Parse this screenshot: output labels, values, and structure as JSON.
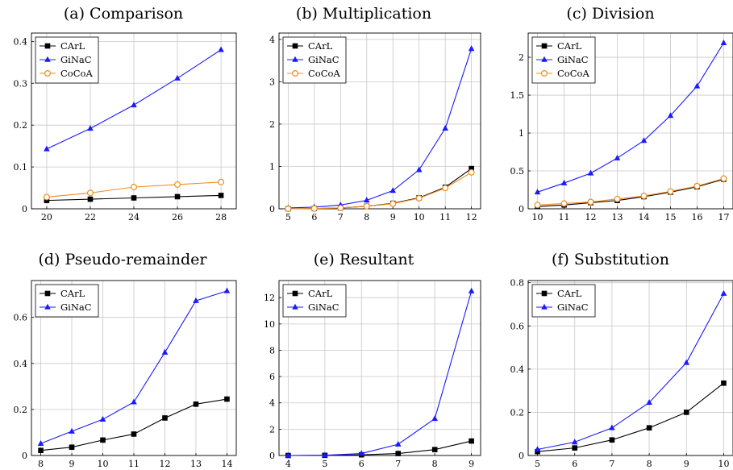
{
  "colors": {
    "carl": "#000000",
    "ginac": "#1a1aff",
    "cocoa": "#f08c1e",
    "grid": "#c8c8c8"
  },
  "chart_data": [
    {
      "id": "a",
      "type": "line",
      "title": "(a) Comparison",
      "x": [
        20,
        22,
        24,
        26,
        28
      ],
      "xticks": [
        20,
        22,
        24,
        26,
        28
      ],
      "xlim": [
        19.3,
        28.7
      ],
      "ylim": [
        0,
        0.42
      ],
      "yticks": [
        0,
        0.1,
        0.2,
        0.3,
        0.4
      ],
      "ytick_labels": [
        "0",
        "0.1",
        "0.2",
        "0.3",
        "0.4"
      ],
      "grid": true,
      "legend": "top-left",
      "series": [
        {
          "name": "CArL",
          "marker": "square",
          "color": "#000000",
          "values": [
            0.02,
            0.023,
            0.026,
            0.029,
            0.032
          ]
        },
        {
          "name": "GiNaC",
          "marker": "triangle",
          "color": "#1a1aff",
          "values": [
            0.143,
            0.192,
            0.248,
            0.312,
            0.38
          ]
        },
        {
          "name": "CoCoA",
          "marker": "circle",
          "color": "#f08c1e",
          "values": [
            0.028,
            0.038,
            0.052,
            0.058,
            0.064
          ]
        }
      ]
    },
    {
      "id": "b",
      "type": "line",
      "title": "(b) Multiplication",
      "x": [
        5,
        6,
        7,
        8,
        9,
        10,
        11,
        12
      ],
      "xticks": [
        5,
        6,
        7,
        8,
        9,
        10,
        11,
        12
      ],
      "xlim": [
        4.65,
        12.35
      ],
      "ylim": [
        0,
        4.15
      ],
      "yticks": [
        0,
        1,
        2,
        3,
        4
      ],
      "ytick_labels": [
        "0",
        "1",
        "2",
        "3",
        "4"
      ],
      "grid": true,
      "legend": "top-left",
      "series": [
        {
          "name": "CArL",
          "marker": "square",
          "color": "#000000",
          "values": [
            0.0,
            0.005,
            0.02,
            0.06,
            0.13,
            0.26,
            0.51,
            0.95
          ]
        },
        {
          "name": "GiNaC",
          "marker": "triangle",
          "color": "#1a1aff",
          "values": [
            0.02,
            0.04,
            0.09,
            0.2,
            0.43,
            0.92,
            1.9,
            3.78
          ]
        },
        {
          "name": "CoCoA",
          "marker": "circle",
          "color": "#f08c1e",
          "values": [
            0.0,
            0.005,
            0.02,
            0.06,
            0.12,
            0.25,
            0.49,
            0.86
          ]
        }
      ]
    },
    {
      "id": "c",
      "type": "line",
      "title": "(c) Division",
      "x": [
        10,
        11,
        12,
        13,
        14,
        15,
        16,
        17
      ],
      "xticks": [
        10,
        11,
        12,
        13,
        14,
        15,
        16,
        17
      ],
      "xlim": [
        9.65,
        17.35
      ],
      "ylim": [
        0,
        2.32
      ],
      "yticks": [
        0,
        0.5,
        1,
        1.5,
        2
      ],
      "ytick_labels": [
        "0",
        "0.5",
        "1",
        "1.5",
        "2"
      ],
      "grid": true,
      "legend": "top-left",
      "series": [
        {
          "name": "CArL",
          "marker": "square",
          "color": "#000000",
          "values": [
            0.03,
            0.05,
            0.08,
            0.11,
            0.16,
            0.22,
            0.29,
            0.39
          ]
        },
        {
          "name": "GiNaC",
          "marker": "triangle",
          "color": "#1a1aff",
          "values": [
            0.22,
            0.34,
            0.47,
            0.67,
            0.9,
            1.23,
            1.62,
            2.19
          ]
        },
        {
          "name": "CoCoA",
          "marker": "circle",
          "color": "#f08c1e",
          "values": [
            0.05,
            0.07,
            0.09,
            0.13,
            0.17,
            0.23,
            0.3,
            0.4
          ]
        }
      ]
    },
    {
      "id": "d",
      "type": "line",
      "title": "(d) Pseudo-remainder",
      "x": [
        8,
        9,
        10,
        11,
        12,
        13,
        14
      ],
      "xticks": [
        8,
        9,
        10,
        11,
        12,
        13,
        14
      ],
      "xlim": [
        7.7,
        14.3
      ],
      "ylim": [
        0,
        0.76
      ],
      "yticks": [
        0,
        0.2,
        0.4,
        0.6
      ],
      "ytick_labels": [
        "0",
        "0.2",
        "0.4",
        "0.6"
      ],
      "grid": true,
      "legend": "top-left",
      "series": [
        {
          "name": "CArL",
          "marker": "square",
          "color": "#000000",
          "values": [
            0.022,
            0.036,
            0.067,
            0.093,
            0.163,
            0.223,
            0.245
          ]
        },
        {
          "name": "GiNaC",
          "marker": "triangle",
          "color": "#1a1aff",
          "values": [
            0.052,
            0.105,
            0.157,
            0.232,
            0.448,
            0.672,
            0.715
          ]
        }
      ]
    },
    {
      "id": "e",
      "type": "line",
      "title": "(e) Resultant",
      "x": [
        4,
        5,
        6,
        7,
        8,
        9
      ],
      "xticks": [
        4,
        5,
        6,
        7,
        8,
        9
      ],
      "xlim": [
        3.75,
        9.25
      ],
      "ylim": [
        0,
        13.3
      ],
      "yticks": [
        0,
        2,
        4,
        6,
        8,
        10,
        12
      ],
      "ytick_labels": [
        "0",
        "2",
        "4",
        "6",
        "8",
        "10",
        "12"
      ],
      "grid": true,
      "legend": "top-left",
      "series": [
        {
          "name": "CArL",
          "marker": "square",
          "color": "#000000",
          "values": [
            0.0,
            0.01,
            0.05,
            0.15,
            0.45,
            1.1
          ]
        },
        {
          "name": "GiNaC",
          "marker": "triangle",
          "color": "#1a1aff",
          "values": [
            0.0,
            0.02,
            0.15,
            0.85,
            2.8,
            12.5
          ]
        }
      ]
    },
    {
      "id": "f",
      "type": "line",
      "title": "(f) Substitution",
      "x": [
        5,
        6,
        7,
        8,
        9,
        10
      ],
      "xticks": [
        5,
        6,
        7,
        8,
        9,
        10
      ],
      "xlim": [
        4.75,
        10.25
      ],
      "ylim": [
        0,
        0.81
      ],
      "yticks": [
        0,
        0.2,
        0.4,
        0.6,
        0.8
      ],
      "ytick_labels": [
        "0",
        "0.2",
        "0.4",
        "0.6",
        "0.8"
      ],
      "grid": true,
      "legend": "top-left",
      "series": [
        {
          "name": "CArL",
          "marker": "square",
          "color": "#000000",
          "values": [
            0.018,
            0.035,
            0.072,
            0.128,
            0.2,
            0.335
          ]
        },
        {
          "name": "GiNaC",
          "marker": "triangle",
          "color": "#1a1aff",
          "values": [
            0.028,
            0.062,
            0.128,
            0.245,
            0.43,
            0.75
          ]
        }
      ]
    }
  ]
}
